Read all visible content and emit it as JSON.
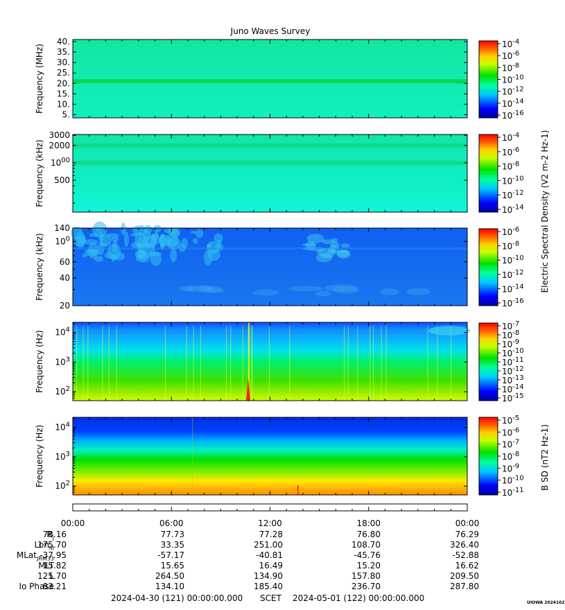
{
  "title": "Juno Waves Survey",
  "chart_data": [
    {
      "type": "heatmap",
      "ylabel": "Frequency (MHz)",
      "yticks": [
        "40.",
        "35.",
        "30.",
        "25.",
        "20.",
        "15.",
        "10.",
        "5."
      ],
      "ytick_values": [
        40,
        35,
        30,
        25,
        20,
        15,
        10,
        5
      ],
      "ylim": [
        3.5,
        41
      ],
      "colorbar_ticks": [
        "10-4",
        "10-6",
        "10-8",
        "10-10",
        "10-12",
        "10-14",
        "10-16"
      ],
      "band_features": [
        {
          "freq": 21,
          "strength": "strong"
        }
      ]
    },
    {
      "type": "heatmap",
      "ylabel": "Frequency (kHz)",
      "yticks": [
        "3000",
        "2000",
        "1000",
        "500"
      ],
      "ytick_values": [
        3000,
        2000,
        1000,
        500
      ],
      "scale": "log",
      "ylim": [
        140,
        3100
      ],
      "colorbar_ticks": [
        "10-4",
        "10-6",
        "10-8",
        "10-10",
        "10-12",
        "10-14"
      ],
      "band_features": [
        {
          "freq": 2000,
          "strength": "medium"
        },
        {
          "freq": 1000,
          "strength": "medium"
        }
      ]
    },
    {
      "type": "heatmap",
      "ylabel": "Frequency (kHz)",
      "yticks": [
        "140",
        "100",
        "60",
        "40",
        "20"
      ],
      "ytick_values": [
        140,
        100,
        60,
        40,
        20
      ],
      "scale": "log",
      "ylim": [
        20,
        140
      ],
      "colorbar_ticks": [
        "10-6",
        "10-8",
        "10-10",
        "10-12",
        "10-14",
        "10-16"
      ]
    },
    {
      "type": "heatmap",
      "ylabel": "Frequency (Hz)",
      "yticks": [
        "104",
        "103",
        "102"
      ],
      "ytick_values": [
        10000,
        1000,
        100
      ],
      "scale": "log",
      "ylim": [
        50,
        22000
      ],
      "colorbar_ticks": [
        "10-7",
        "10-8",
        "10-9",
        "10-10",
        "10-11",
        "10-12",
        "10-13",
        "10-14",
        "10-15"
      ]
    },
    {
      "type": "heatmap",
      "ylabel": "Frequency (Hz)",
      "yticks": [
        "104",
        "103",
        "102"
      ],
      "ytick_values": [
        10000,
        1000,
        100
      ],
      "scale": "log",
      "ylim": [
        50,
        22000
      ],
      "colorbar_ticks": [
        "10-5",
        "10-6",
        "10-7",
        "10-8",
        "10-9",
        "10-10",
        "10-11"
      ]
    }
  ],
  "colorbar_label_electric": "Electric Spectral Density (V2 m-2 Hz-1)",
  "colorbar_label_magnetic": "B SD (nT2 Hz-1)",
  "time_ticks": [
    "00:00",
    "06:00",
    "12:00",
    "18:00",
    "00:00"
  ],
  "ephemeris": [
    {
      "label": "Rj",
      "values": [
        "78.16",
        "77.73",
        "77.28",
        "76.80",
        "76.29"
      ]
    },
    {
      "label": "LonIII",
      "values": [
        "175.70",
        "33.35",
        "251.00",
        "108.70",
        "326.40"
      ]
    },
    {
      "label": "MLatJRM33",
      "values": [
        "-37.95",
        "-57.17",
        "-40.81",
        "-45.76",
        "-52.88"
      ]
    },
    {
      "label": "MLT",
      "values": [
        "15.82",
        "15.65",
        "16.49",
        "15.20",
        "16.62"
      ]
    },
    {
      "label": "L",
      "values": [
        "125.70",
        "264.50",
        "134.90",
        "157.80",
        "209.50"
      ]
    },
    {
      "label": "Io Phase",
      "values": [
        "83.21",
        "134.10",
        "185.40",
        "236.70",
        "287.80"
      ]
    }
  ],
  "footer": {
    "start": "2024-04-30 (121) 00:00:00.000",
    "mid": "SCET",
    "end": "2024-05-01 (122) 00:00:00.000"
  },
  "stamp": "UIOWA 20241027"
}
